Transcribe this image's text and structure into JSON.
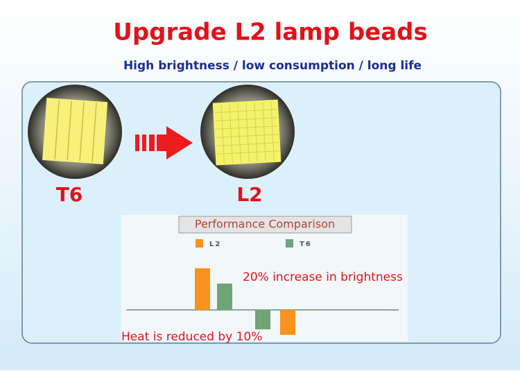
{
  "header": {
    "title": "Upgrade L2 lamp beads",
    "subtitle": "High brightness / low consumption / long life"
  },
  "products": {
    "left": "T6",
    "right": "L2"
  },
  "chart_data": {
    "type": "bar",
    "title": "Performance Comparison",
    "categories": [
      null,
      null
    ],
    "series": [
      {
        "name": "L2",
        "color": "#f7931e",
        "values": [
          60,
          -36
        ]
      },
      {
        "name": "T6",
        "color": "#6fa476",
        "values": [
          38,
          -28
        ]
      }
    ],
    "annotations": [
      "20% increase in brightness",
      "Heat is reduced by 10%"
    ]
  }
}
